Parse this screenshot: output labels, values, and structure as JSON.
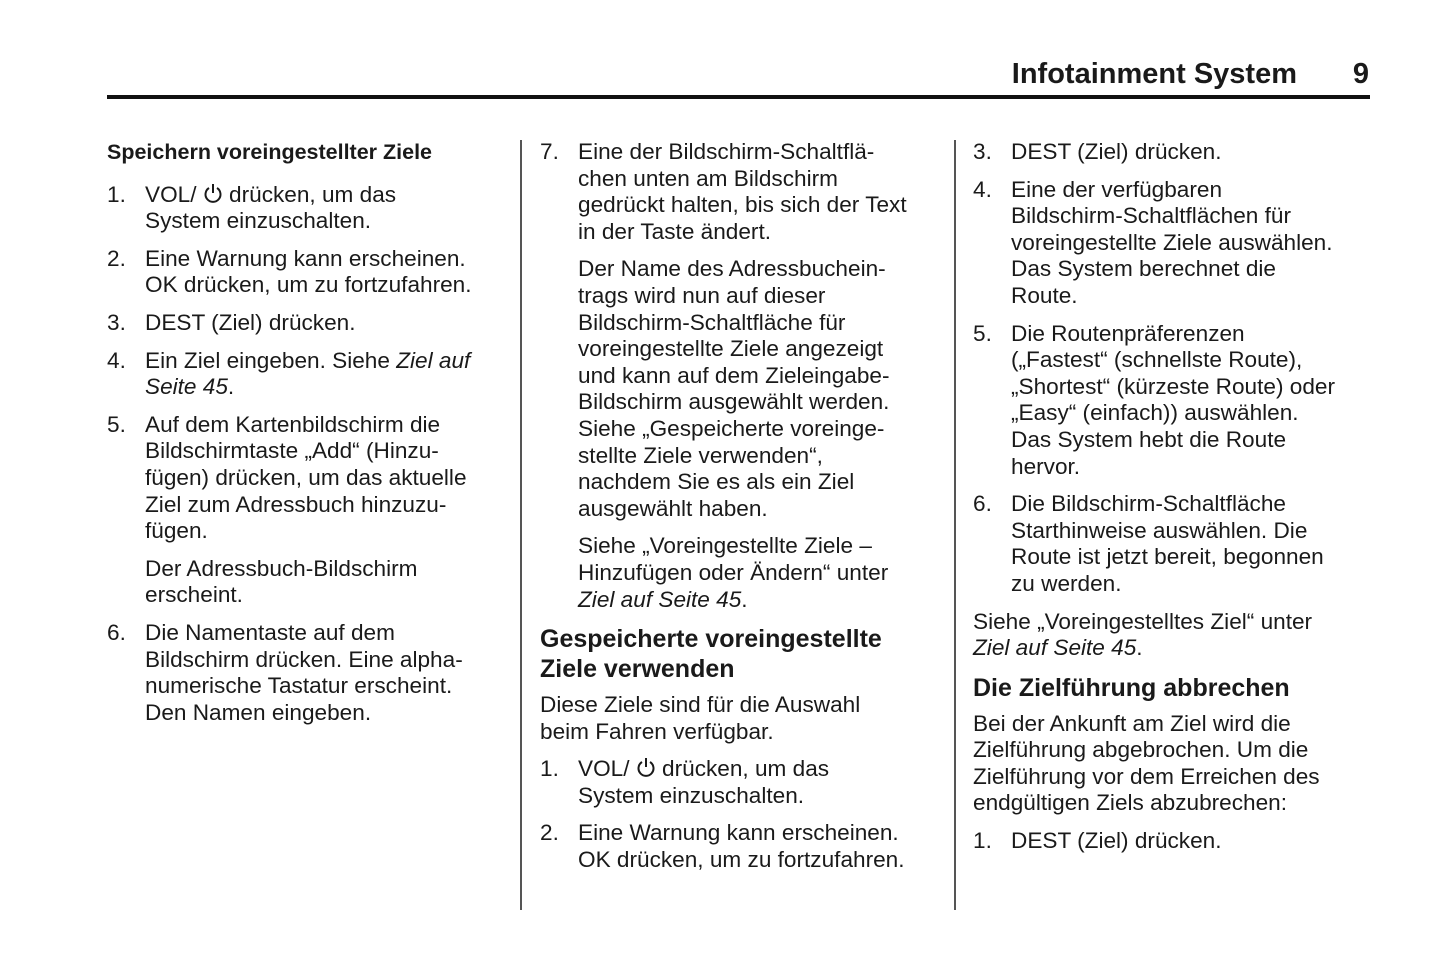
{
  "header": {
    "title": "Infotainment System",
    "page_number": "9"
  },
  "columns": [
    [
      {
        "type": "h-small",
        "lines": [
          "Speichern voreingestellter Ziele"
        ]
      },
      {
        "type": "item",
        "num": "1.",
        "lines": [
          [
            [
              "VOL/ ",
              0
            ],
            [
              "power-icon",
              "icon"
            ],
            [
              " drücken, um das",
              0
            ]
          ],
          "System einzuschalten."
        ]
      },
      {
        "type": "item",
        "num": "2.",
        "lines": [
          "Eine Warnung kann erscheinen.",
          "OK drücken, um zu fortzufahren."
        ]
      },
      {
        "type": "item",
        "num": "3.",
        "lines": [
          "DEST (Ziel) drücken."
        ]
      },
      {
        "type": "item",
        "num": "4.",
        "lines": [
          [
            [
              "Ein Ziel eingeben. Siehe ",
              0
            ],
            [
              "Ziel auf",
              1
            ]
          ],
          [
            [
              "Seite 45",
              1
            ],
            [
              ".",
              0
            ]
          ]
        ]
      },
      {
        "type": "item",
        "num": "5.",
        "lines": [
          "Auf dem Kartenbildschirm die",
          "Bildschirmtaste „Add“ (Hinzu-",
          "fügen) drücken, um das aktuelle",
          "Ziel zum Adressbuch hinzuzu-",
          "fügen."
        ]
      },
      {
        "type": "sub",
        "lines": [
          "Der Adressbuch-Bildschirm",
          "erscheint."
        ]
      },
      {
        "type": "item",
        "num": "6.",
        "lines": [
          "Die Namentaste auf dem",
          "Bildschirm drücken. Eine alpha-",
          "numerische Tastatur erscheint.",
          "Den Namen eingeben."
        ]
      }
    ],
    [
      {
        "type": "item",
        "num": "7.",
        "lines": [
          "Eine der Bildschirm-Schaltflä-",
          "chen unten am Bildschirm",
          "gedrückt halten, bis sich der Text",
          "in der Taste ändert."
        ]
      },
      {
        "type": "sub",
        "lines": [
          "Der Name des Adressbuchein-",
          "trags wird nun auf dieser",
          "Bildschirm-Schaltfläche für",
          "voreingestellte Ziele angezeigt",
          "und kann auf dem Zieleingabe-",
          "Bildschirm ausgewählt werden.",
          "Siehe „Gespeicherte voreinge-",
          "stellte Ziele verwenden“,",
          "nachdem Sie es als ein Ziel",
          "ausgewählt haben."
        ]
      },
      {
        "type": "sub",
        "lines": [
          "Siehe „Voreingestellte Ziele –",
          "Hinzufügen oder Ändern“ unter",
          [
            [
              "Ziel auf Seite 45",
              1
            ],
            [
              ".",
              0
            ]
          ]
        ]
      },
      {
        "type": "h-big",
        "lines": [
          "Gespeicherte voreingestellte",
          "Ziele verwenden"
        ]
      },
      {
        "type": "para",
        "lines": [
          "Diese Ziele sind für die Auswahl",
          "beim Fahren verfügbar."
        ]
      },
      {
        "type": "item",
        "num": "1.",
        "lines": [
          [
            [
              "VOL/ ",
              0
            ],
            [
              "power-icon",
              "icon"
            ],
            [
              " drücken, um das",
              0
            ]
          ],
          "System einzuschalten."
        ]
      },
      {
        "type": "item",
        "num": "2.",
        "lines": [
          "Eine Warnung kann erscheinen.",
          "OK drücken, um zu fortzufahren."
        ]
      }
    ],
    [
      {
        "type": "item",
        "num": "3.",
        "lines": [
          "DEST (Ziel) drücken."
        ]
      },
      {
        "type": "item",
        "num": "4.",
        "lines": [
          "Eine der verfügbaren",
          "Bildschirm-Schaltflächen für",
          "voreingestellte Ziele auswählen.",
          "Das System berechnet die",
          "Route."
        ]
      },
      {
        "type": "item",
        "num": "5.",
        "lines": [
          "Die Routenpräferenzen",
          "(„Fastest“ (schnellste Route),",
          "„Shortest“ (kürzeste Route) oder",
          "„Easy“ (einfach)) auswählen.",
          "Das System hebt die Route",
          "hervor."
        ]
      },
      {
        "type": "item",
        "num": "6.",
        "lines": [
          "Die Bildschirm-Schaltfläche",
          "Starthinweise auswählen. Die",
          "Route ist jetzt bereit, begonnen",
          "zu werden."
        ]
      },
      {
        "type": "para",
        "lines": [
          "Siehe „Voreingestelltes Ziel“ unter",
          [
            [
              "Ziel auf Seite 45",
              1
            ],
            [
              ".",
              0
            ]
          ]
        ]
      },
      {
        "type": "h-big",
        "lines": [
          "Die Zielführung abbrechen"
        ]
      },
      {
        "type": "para",
        "lines": [
          "Bei der Ankunft am Ziel wird die",
          "Zielführung abgebrochen. Um die",
          "Zielführung vor dem Erreichen des",
          "endgültigen Ziels abzubrechen:"
        ]
      },
      {
        "type": "item",
        "num": "1.",
        "lines": [
          "DEST (Ziel) drücken."
        ]
      }
    ]
  ]
}
